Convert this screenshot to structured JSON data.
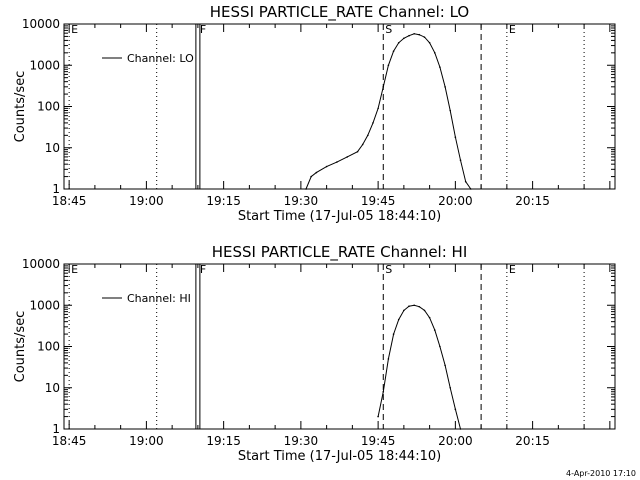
{
  "figure": {
    "timestamp": "4-Apr-2010 17:10"
  },
  "chart_data": [
    {
      "type": "line",
      "title": "HESSI PARTICLE_RATE Channel: LO",
      "xlabel": "Start Time (17-Jul-05 18:44:10)",
      "ylabel": "Counts/sec",
      "y_scale": "log",
      "xlim": [
        "18:44",
        "20:31"
      ],
      "ylim": [
        1,
        10000
      ],
      "x_tick_labels": [
        "18:45",
        "19:00",
        "19:15",
        "19:30",
        "19:45",
        "20:00",
        "20:15"
      ],
      "y_tick_labels": [
        "1",
        "10",
        "100",
        "1000",
        "10000"
      ],
      "legend": {
        "placement": "top-left",
        "entries": [
          "Channel: LO"
        ]
      },
      "markers": [
        {
          "label": "E",
          "time": "18:45",
          "style": "dotted"
        },
        {
          "label": "",
          "time": "19:02",
          "style": "dotted"
        },
        {
          "label": "F",
          "time": "19:10",
          "style": "solid"
        },
        {
          "label": "S",
          "time": "19:46",
          "style": "dashed"
        },
        {
          "label": "",
          "time": "20:05",
          "style": "dashed"
        },
        {
          "label": "E",
          "time": "20:10",
          "style": "dotted"
        },
        {
          "label": "",
          "time": "20:25",
          "style": "dotted"
        }
      ],
      "series": [
        {
          "x": [
            "19:31",
            "19:32",
            "19:33",
            "19:35",
            "19:37",
            "19:39",
            "19:41",
            "19:42",
            "19:43",
            "19:44",
            "19:45",
            "19:46",
            "19:47",
            "19:48",
            "19:49",
            "19:50",
            "19:51",
            "19:52",
            "19:53",
            "19:54",
            "19:55",
            "19:56",
            "19:57",
            "19:58",
            "19:59",
            "20:00",
            "20:01",
            "20:02",
            "20:03"
          ],
          "y": [
            1,
            2,
            2.5,
            3.5,
            4.5,
            6,
            8,
            12,
            20,
            40,
            90,
            300,
            1000,
            2200,
            3500,
            4500,
            5200,
            5800,
            5500,
            4800,
            3500,
            2000,
            900,
            300,
            80,
            18,
            5,
            1.5,
            1
          ]
        }
      ]
    },
    {
      "type": "line",
      "title": "HESSI PARTICLE_RATE Channel: HI",
      "xlabel": "Start Time (17-Jul-05 18:44:10)",
      "ylabel": "Counts/sec",
      "y_scale": "log",
      "xlim": [
        "18:44",
        "20:31"
      ],
      "ylim": [
        1,
        10000
      ],
      "x_tick_labels": [
        "18:45",
        "19:00",
        "19:15",
        "19:30",
        "19:45",
        "20:00",
        "20:15"
      ],
      "y_tick_labels": [
        "1",
        "10",
        "100",
        "1000",
        "10000"
      ],
      "legend": {
        "placement": "top-left",
        "entries": [
          "Channel: HI"
        ]
      },
      "markers": [
        {
          "label": "E",
          "time": "18:45",
          "style": "dotted"
        },
        {
          "label": "",
          "time": "19:02",
          "style": "dotted"
        },
        {
          "label": "F",
          "time": "19:10",
          "style": "solid"
        },
        {
          "label": "S",
          "time": "19:46",
          "style": "dashed"
        },
        {
          "label": "",
          "time": "20:05",
          "style": "dashed"
        },
        {
          "label": "E",
          "time": "20:10",
          "style": "dotted"
        },
        {
          "label": "",
          "time": "20:25",
          "style": "dotted"
        }
      ],
      "series": [
        {
          "x": [
            "19:45",
            "19:46",
            "19:47",
            "19:48",
            "19:49",
            "19:50",
            "19:51",
            "19:52",
            "19:53",
            "19:54",
            "19:55",
            "19:56",
            "19:57",
            "19:58",
            "19:59",
            "20:00",
            "20:01"
          ],
          "y": [
            2,
            8,
            50,
            200,
            450,
            750,
            950,
            1000,
            920,
            750,
            500,
            250,
            100,
            35,
            10,
            3,
            1
          ]
        }
      ]
    }
  ]
}
